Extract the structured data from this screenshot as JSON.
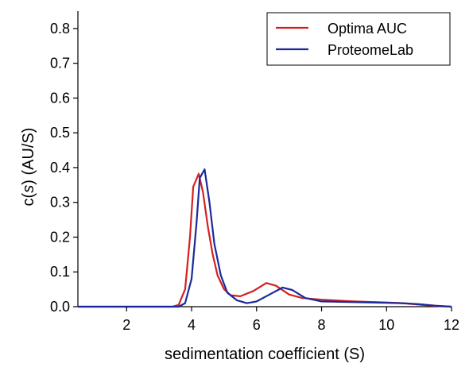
{
  "chart_data": {
    "type": "line",
    "xlabel": "sedimentation coefficient (S)",
    "ylabel_prefix": "c(",
    "ylabel_italic": "s",
    "ylabel_suffix": ") (AU/S)",
    "xlim": [
      0.5,
      12
    ],
    "ylim": [
      0,
      0.85
    ],
    "x_ticks": [
      2,
      4,
      6,
      8,
      10,
      12
    ],
    "y_ticks": [
      0.0,
      0.1,
      0.2,
      0.3,
      0.4,
      0.5,
      0.6,
      0.7,
      0.8
    ],
    "y_tick_labels": [
      "0.0",
      "0.1",
      "0.2",
      "0.3",
      "0.4",
      "0.5",
      "0.6",
      "0.7",
      "0.8"
    ],
    "grid": false,
    "legend_position": "top-right",
    "series": [
      {
        "name": "Optima AUC",
        "color": "#d42020",
        "points": [
          [
            0.5,
            0
          ],
          [
            3.4,
            0
          ],
          [
            3.6,
            0.005
          ],
          [
            3.8,
            0.05
          ],
          [
            3.95,
            0.2
          ],
          [
            4.05,
            0.345
          ],
          [
            4.22,
            0.382
          ],
          [
            4.35,
            0.33
          ],
          [
            4.5,
            0.23
          ],
          [
            4.65,
            0.15
          ],
          [
            4.8,
            0.09
          ],
          [
            5.0,
            0.05
          ],
          [
            5.2,
            0.033
          ],
          [
            5.5,
            0.03
          ],
          [
            5.9,
            0.045
          ],
          [
            6.3,
            0.068
          ],
          [
            6.6,
            0.06
          ],
          [
            7.0,
            0.035
          ],
          [
            7.4,
            0.025
          ],
          [
            8.0,
            0.02
          ],
          [
            9.0,
            0.015
          ],
          [
            10.0,
            0.012
          ],
          [
            10.5,
            0.01
          ],
          [
            11.0,
            0.006
          ],
          [
            11.5,
            0.002
          ],
          [
            12,
            0
          ]
        ]
      },
      {
        "name": "ProteomeLab",
        "color": "#1a2a9a",
        "points": [
          [
            0.5,
            0
          ],
          [
            3.6,
            0
          ],
          [
            3.8,
            0.01
          ],
          [
            4.0,
            0.08
          ],
          [
            4.15,
            0.24
          ],
          [
            4.25,
            0.37
          ],
          [
            4.4,
            0.395
          ],
          [
            4.55,
            0.3
          ],
          [
            4.7,
            0.18
          ],
          [
            4.9,
            0.09
          ],
          [
            5.1,
            0.04
          ],
          [
            5.4,
            0.018
          ],
          [
            5.7,
            0.01
          ],
          [
            6.0,
            0.015
          ],
          [
            6.4,
            0.035
          ],
          [
            6.8,
            0.055
          ],
          [
            7.1,
            0.048
          ],
          [
            7.5,
            0.025
          ],
          [
            8.0,
            0.015
          ],
          [
            9.0,
            0.013
          ],
          [
            10.0,
            0.011
          ],
          [
            10.5,
            0.01
          ],
          [
            11.0,
            0.007
          ],
          [
            11.5,
            0.003
          ],
          [
            12,
            0
          ]
        ]
      }
    ]
  }
}
